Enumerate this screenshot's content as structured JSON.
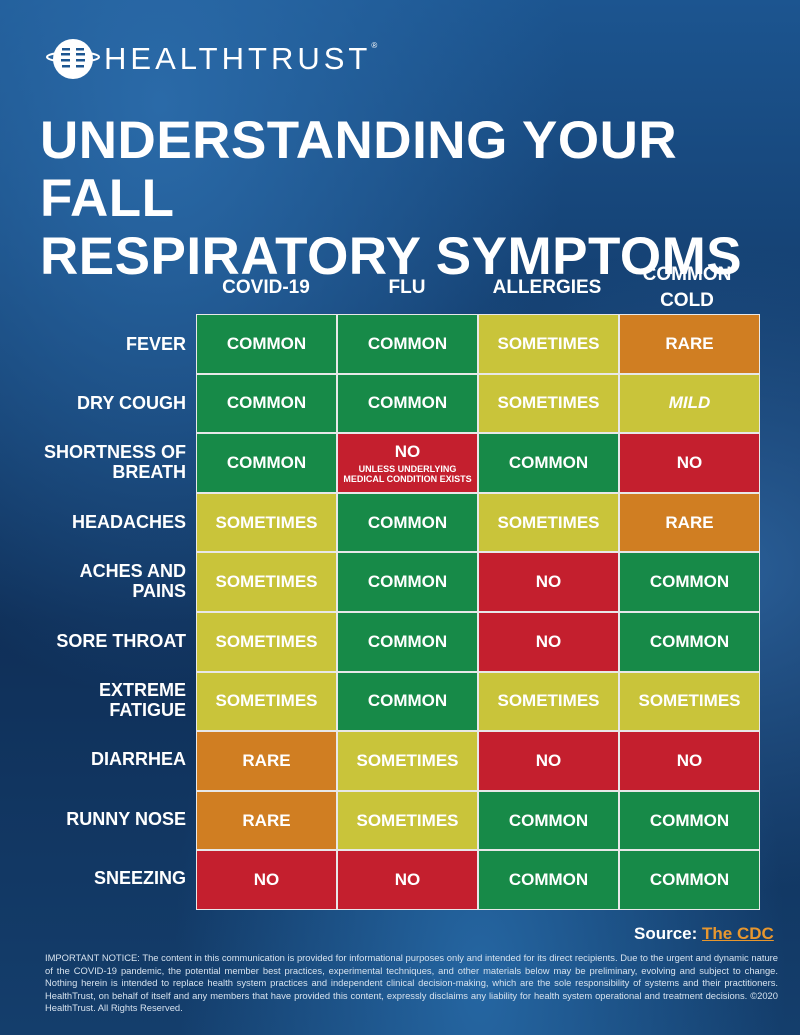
{
  "brand": {
    "name": "HEALTHTRUST",
    "registered": "®"
  },
  "title": {
    "line1": "UNDERSTANDING YOUR FALL",
    "line2": "RESPIRATORY SYMPTOMS"
  },
  "columns": [
    "COVID-19",
    "FLU",
    "ALLERGIES",
    "COMMON COLD"
  ],
  "colors": {
    "common": "#178a48",
    "sometimes": "#c9c43a",
    "rare": "#d07e22",
    "no": "#c41f2e",
    "source_link": "#e8972e"
  },
  "rows": [
    {
      "label": "FEVER",
      "cells": [
        {
          "text": "COMMON",
          "level": "common"
        },
        {
          "text": "COMMON",
          "level": "common"
        },
        {
          "text": "SOMETIMES",
          "level": "sometimes"
        },
        {
          "text": "RARE",
          "level": "rare"
        }
      ]
    },
    {
      "label": "DRY COUGH",
      "cells": [
        {
          "text": "COMMON",
          "level": "common"
        },
        {
          "text": "COMMON",
          "level": "common"
        },
        {
          "text": "SOMETIMES",
          "level": "sometimes"
        },
        {
          "text": "MILD",
          "level": "mild"
        }
      ]
    },
    {
      "label": "SHORTNESS OF BREATH",
      "cells": [
        {
          "text": "COMMON",
          "level": "common"
        },
        {
          "text": "NO",
          "level": "no",
          "sub": "UNLESS UNDERLYING MEDICAL CONDITION EXISTS"
        },
        {
          "text": "COMMON",
          "level": "common"
        },
        {
          "text": "NO",
          "level": "no"
        }
      ]
    },
    {
      "label": "HEADACHES",
      "cells": [
        {
          "text": "SOMETIMES",
          "level": "sometimes"
        },
        {
          "text": "COMMON",
          "level": "common"
        },
        {
          "text": "SOMETIMES",
          "level": "sometimes"
        },
        {
          "text": "RARE",
          "level": "rare"
        }
      ]
    },
    {
      "label": "ACHES AND PAINS",
      "cells": [
        {
          "text": "SOMETIMES",
          "level": "sometimes"
        },
        {
          "text": "COMMON",
          "level": "common"
        },
        {
          "text": "NO",
          "level": "no"
        },
        {
          "text": "COMMON",
          "level": "common"
        }
      ]
    },
    {
      "label": "SORE THROAT",
      "cells": [
        {
          "text": "SOMETIMES",
          "level": "sometimes"
        },
        {
          "text": "COMMON",
          "level": "common"
        },
        {
          "text": "NO",
          "level": "no"
        },
        {
          "text": "COMMON",
          "level": "common"
        }
      ]
    },
    {
      "label": "EXTREME FATIGUE",
      "cells": [
        {
          "text": "SOMETIMES",
          "level": "sometimes"
        },
        {
          "text": "COMMON",
          "level": "common"
        },
        {
          "text": "SOMETIMES",
          "level": "sometimes"
        },
        {
          "text": "SOMETIMES",
          "level": "sometimes"
        }
      ]
    },
    {
      "label": "DIARRHEA",
      "cells": [
        {
          "text": "RARE",
          "level": "rare"
        },
        {
          "text": "SOMETIMES",
          "level": "sometimes"
        },
        {
          "text": "NO",
          "level": "no"
        },
        {
          "text": "NO",
          "level": "no"
        }
      ]
    },
    {
      "label": "RUNNY NOSE",
      "cells": [
        {
          "text": "RARE",
          "level": "rare"
        },
        {
          "text": "SOMETIMES",
          "level": "sometimes"
        },
        {
          "text": "COMMON",
          "level": "common"
        },
        {
          "text": "COMMON",
          "level": "common"
        }
      ]
    },
    {
      "label": "SNEEZING",
      "cells": [
        {
          "text": "NO",
          "level": "no"
        },
        {
          "text": "NO",
          "level": "no"
        },
        {
          "text": "COMMON",
          "level": "common"
        },
        {
          "text": "COMMON",
          "level": "common"
        }
      ]
    }
  ],
  "source": {
    "label": "Source:",
    "link": "The CDC"
  },
  "notice": "IMPORTANT NOTICE: The content in this communication is provided for informational purposes only and intended for its direct recipients.  Due to the urgent and dynamic nature of the COVID-19 pandemic, the potential member best practices, experimental techniques, and other materials below may be preliminary, evolving and subject to change. Nothing herein is intended to replace health system practices and independent clinical decision-making, which are the sole responsibility of systems and their practitioners. HealthTrust, on behalf of itself and any members that have provided this content, expressly disclaims any liability for health system operational and treatment decisions. ©2020 HealthTrust. All Rights Reserved."
}
